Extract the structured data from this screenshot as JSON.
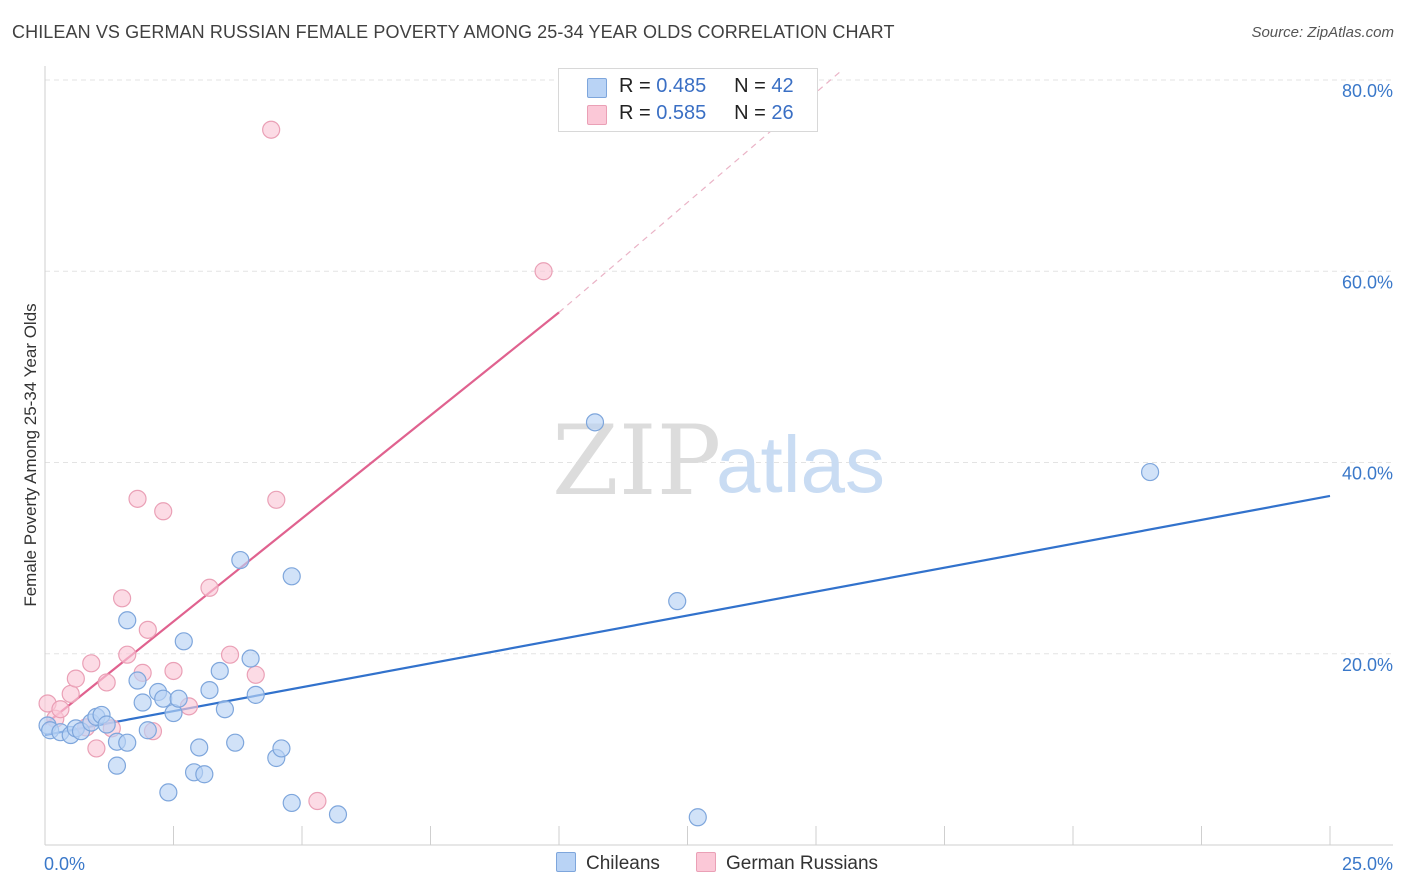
{
  "header": {
    "title": "CHILEAN VS GERMAN RUSSIAN FEMALE POVERTY AMONG 25-34 YEAR OLDS CORRELATION CHART",
    "source": "Source: ZipAtlas.com"
  },
  "legend": {
    "rows": [
      {
        "r_label": "R =",
        "r_value": "0.485",
        "n_label": "N =",
        "n_value": "42"
      },
      {
        "r_label": "R =",
        "r_value": "0.585",
        "n_label": "N =",
        "n_value": "26"
      }
    ],
    "series": [
      {
        "name": "Chileans"
      },
      {
        "name": "German Russians"
      }
    ]
  },
  "colors": {
    "chileans_fill": "#b9d3f5",
    "chileans_stroke": "#7ea6dc",
    "chileans_line": "#3272cc",
    "german_fill": "#fbc8d7",
    "german_stroke": "#eaa0b6",
    "german_line": "#e0628f",
    "tick_text": "#3a78c9",
    "grid": "#e3e3e3"
  },
  "watermark": {
    "zip": "ZIP",
    "atlas": "atlas"
  },
  "chart_data": {
    "type": "scatter",
    "title": "CHILEAN VS GERMAN RUSSIAN FEMALE POVERTY AMONG 25-34 YEAR OLDS CORRELATION CHART",
    "xlabel": "",
    "ylabel": "Female Poverty Among 25-34 Year Olds",
    "xlim": [
      0,
      25
    ],
    "ylim": [
      0,
      80
    ],
    "x_tick_labels": [
      "0.0%",
      "25.0%"
    ],
    "y_ticks": [
      20,
      40,
      60,
      80
    ],
    "y_tick_labels": [
      "20.0%",
      "40.0%",
      "60.0%",
      "80.0%"
    ],
    "grid": true,
    "legend_position": "top-center",
    "series": [
      {
        "name": "Chileans",
        "points": [
          [
            0.05,
            12.5
          ],
          [
            0.1,
            12.0
          ],
          [
            0.3,
            11.8
          ],
          [
            0.5,
            11.5
          ],
          [
            0.6,
            12.2
          ],
          [
            0.7,
            11.9
          ],
          [
            0.9,
            12.8
          ],
          [
            1.0,
            13.4
          ],
          [
            1.1,
            13.6
          ],
          [
            1.2,
            12.6
          ],
          [
            1.4,
            10.8
          ],
          [
            1.4,
            8.3
          ],
          [
            1.6,
            10.7
          ],
          [
            1.6,
            23.5
          ],
          [
            1.8,
            17.2
          ],
          [
            1.9,
            14.9
          ],
          [
            2.0,
            12.0
          ],
          [
            2.2,
            16.0
          ],
          [
            2.3,
            15.3
          ],
          [
            2.4,
            5.5
          ],
          [
            2.5,
            13.8
          ],
          [
            2.6,
            15.3
          ],
          [
            2.7,
            21.3
          ],
          [
            2.9,
            7.6
          ],
          [
            3.0,
            10.2
          ],
          [
            3.1,
            7.4
          ],
          [
            3.2,
            16.2
          ],
          [
            3.4,
            18.2
          ],
          [
            3.5,
            14.2
          ],
          [
            3.7,
            10.7
          ],
          [
            3.8,
            29.8
          ],
          [
            4.0,
            19.5
          ],
          [
            4.1,
            15.7
          ],
          [
            4.5,
            9.1
          ],
          [
            4.6,
            10.1
          ],
          [
            4.8,
            28.1
          ],
          [
            4.8,
            4.4
          ],
          [
            5.7,
            3.2
          ],
          [
            10.7,
            44.2
          ],
          [
            12.3,
            25.5
          ],
          [
            12.7,
            2.9
          ],
          [
            21.5,
            39.0
          ]
        ],
        "trend": {
          "x0": 0.0,
          "y0": 11.5,
          "x1": 25.0,
          "y1": 36.5
        }
      },
      {
        "name": "German Russians",
        "points": [
          [
            0.05,
            14.8
          ],
          [
            0.2,
            13.2
          ],
          [
            0.3,
            14.2
          ],
          [
            0.5,
            15.8
          ],
          [
            0.6,
            17.4
          ],
          [
            0.8,
            12.3
          ],
          [
            0.9,
            19.0
          ],
          [
            1.0,
            10.1
          ],
          [
            1.2,
            17.0
          ],
          [
            1.3,
            12.2
          ],
          [
            1.5,
            25.8
          ],
          [
            1.6,
            19.9
          ],
          [
            1.8,
            36.2
          ],
          [
            1.9,
            18.0
          ],
          [
            2.0,
            22.5
          ],
          [
            2.1,
            11.9
          ],
          [
            2.3,
            34.9
          ],
          [
            2.5,
            18.2
          ],
          [
            2.8,
            14.5
          ],
          [
            3.2,
            26.9
          ],
          [
            3.6,
            19.9
          ],
          [
            4.1,
            17.8
          ],
          [
            4.4,
            74.8
          ],
          [
            4.5,
            36.1
          ],
          [
            5.3,
            4.6
          ],
          [
            9.7,
            60.0
          ]
        ],
        "trend": {
          "x0": 0.0,
          "y0": 12.6,
          "x1": 10.0,
          "y1": 55.7
        },
        "trend_dashed_extension": {
          "x0": 10.0,
          "y0": 55.7,
          "x1": 15.5,
          "y1": 81.0
        }
      }
    ]
  }
}
